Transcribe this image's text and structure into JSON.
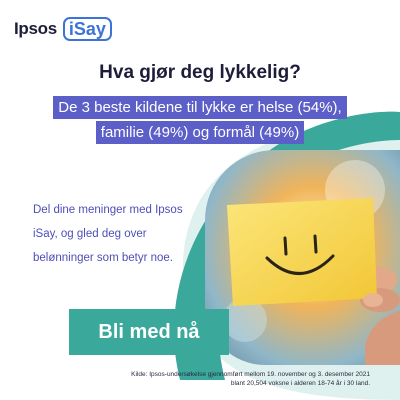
{
  "logo": {
    "brand": "Ipsos",
    "product": "iSay"
  },
  "headline": "Hva gjør deg lykkelig?",
  "stat_lines": [
    "De 3 beste kildene til lykke er helse (54%),",
    "familie (49%) og formål (49%)"
  ],
  "invite_lines": [
    "Del dine meninger med Ipsos",
    "iSay, og gled deg over",
    "belønninger som betyr noe."
  ],
  "cta_label": "Bli med nå",
  "footnote_lines": [
    "Kilde: Ipsos-undersøkelse gjennomført mellom 19. november og 3. desember 2021",
    "blant 20,504 voksne i alderen 18-74 år i 30 land."
  ],
  "colors": {
    "teal": "#3aa89a",
    "purple": "#5b5fc7",
    "navy": "#1d1d3a",
    "logo_blue": "#3b73d9",
    "note_yellow": "#f5d33f"
  },
  "photo": {
    "subject": "smiley-face-note-icon"
  }
}
